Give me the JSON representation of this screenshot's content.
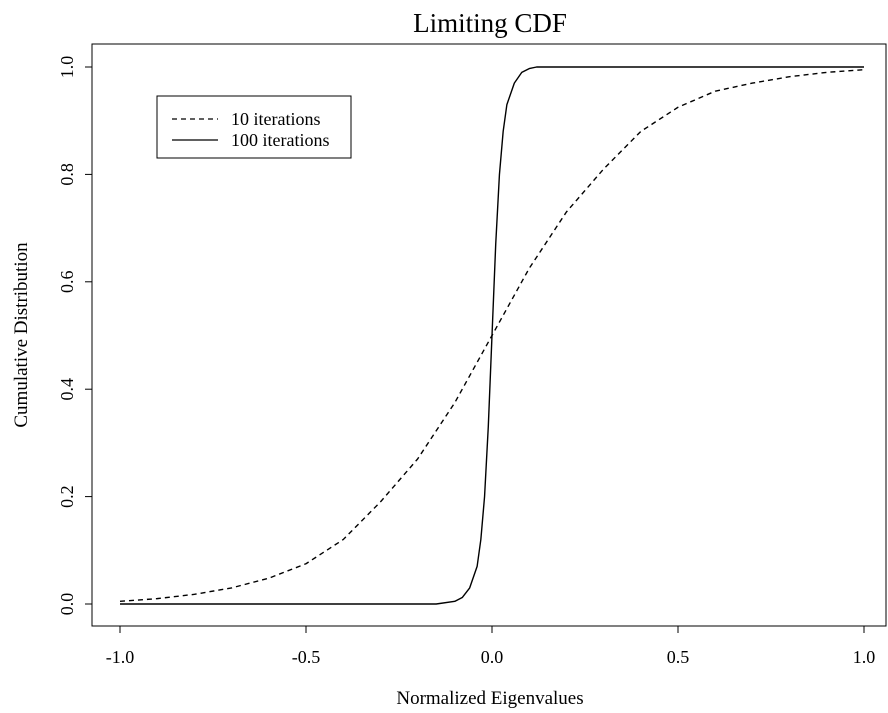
{
  "chart_data": {
    "type": "line",
    "title": "Limiting CDF",
    "xlabel": "Normalized Eigenvalues",
    "ylabel": "Cumulative Distribution",
    "xlim": [
      -1.0,
      1.0
    ],
    "ylim": [
      0.0,
      1.0
    ],
    "xticks": [
      "-1.0",
      "-0.5",
      "0.0",
      "0.5",
      "1.0"
    ],
    "yticks": [
      "0.0",
      "0.2",
      "0.4",
      "0.6",
      "0.8",
      "1.0"
    ],
    "grid": false,
    "legend_position": "top-left",
    "series": [
      {
        "name": "10 iterations",
        "style": "dashed",
        "color": "#000000",
        "x": [
          -1.0,
          -0.9,
          -0.8,
          -0.7,
          -0.6,
          -0.5,
          -0.4,
          -0.3,
          -0.2,
          -0.1,
          0.0,
          0.1,
          0.2,
          0.3,
          0.4,
          0.5,
          0.6,
          0.7,
          0.8,
          0.9,
          1.0
        ],
        "y": [
          0.005,
          0.01,
          0.018,
          0.03,
          0.048,
          0.075,
          0.12,
          0.19,
          0.27,
          0.375,
          0.5,
          0.625,
          0.73,
          0.81,
          0.88,
          0.925,
          0.955,
          0.97,
          0.982,
          0.99,
          0.995
        ]
      },
      {
        "name": "100 iterations",
        "style": "solid",
        "color": "#000000",
        "x": [
          -1.0,
          -0.2,
          -0.15,
          -0.1,
          -0.08,
          -0.06,
          -0.04,
          -0.03,
          -0.02,
          -0.01,
          0.0,
          0.01,
          0.02,
          0.03,
          0.04,
          0.06,
          0.08,
          0.1,
          0.12,
          0.15,
          0.2,
          1.0
        ],
        "y": [
          0.0,
          0.0,
          0.0,
          0.005,
          0.012,
          0.03,
          0.07,
          0.12,
          0.2,
          0.33,
          0.5,
          0.67,
          0.8,
          0.88,
          0.93,
          0.97,
          0.99,
          0.997,
          1.0,
          1.0,
          1.0,
          1.0
        ]
      }
    ]
  }
}
